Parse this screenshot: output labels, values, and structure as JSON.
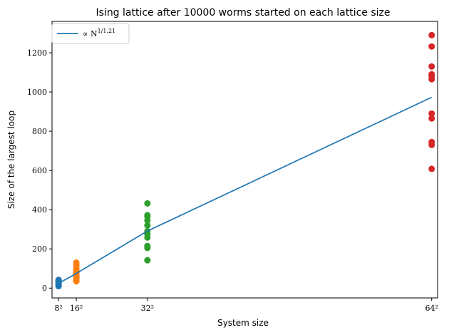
{
  "chart_data": {
    "type": "scatter",
    "title": "Ising lattice after 10000 worms started on each lattice size",
    "xlabel": "System size",
    "ylabel": "Size of the largest loop",
    "xlim": [
      -6.8,
      4160
    ],
    "ylim": [
      -50,
      1360
    ],
    "x_ticks": [
      {
        "value": 64,
        "label": "8²"
      },
      {
        "value": 256,
        "label": "16²"
      },
      {
        "value": 1024,
        "label": "32²"
      },
      {
        "value": 4096,
        "label": "64²"
      }
    ],
    "y_ticks": [
      0,
      200,
      400,
      600,
      800,
      1000,
      1200
    ],
    "grid": false,
    "legend": {
      "placement": "top-left",
      "entries": [
        "∝ N^{1/1.21}"
      ]
    },
    "series": [
      {
        "kind": "scatter",
        "color": "#1f77b4",
        "x": 64,
        "values": [
          10,
          15,
          20,
          25,
          28,
          32,
          35,
          38,
          40,
          42
        ]
      },
      {
        "kind": "scatter",
        "color": "#ff7f0e",
        "x": 256,
        "values": [
          35,
          42,
          55,
          65,
          72,
          80,
          90,
          100,
          115,
          130
        ]
      },
      {
        "kind": "scatter",
        "color": "#2ca02c",
        "x": 1024,
        "values": [
          142,
          205,
          215,
          258,
          275,
          290,
          320,
          345,
          365,
          372,
          432
        ]
      },
      {
        "kind": "scatter",
        "color": "#d62728",
        "x": 4096,
        "values": [
          608,
          730,
          745,
          865,
          890,
          1065,
          1080,
          1090,
          1130,
          1232,
          1290
        ]
      },
      {
        "kind": "line",
        "name": "∝ N^{1/1.21}",
        "color": "#1f77b4",
        "x": [
          64,
          256,
          1024,
          4096
        ],
        "values": [
          24,
          75,
          291,
          973
        ]
      }
    ]
  }
}
